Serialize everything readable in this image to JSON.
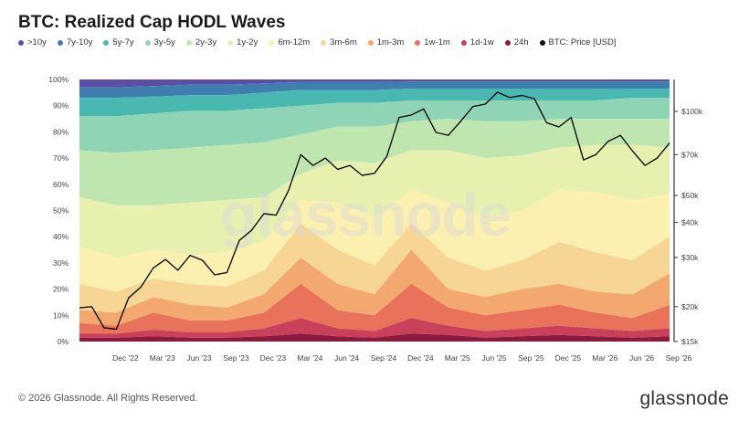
{
  "title": "BTC: Realized Cap HODL Waves",
  "legend": [
    {
      "label": ">10y",
      "color": "#5b4da8"
    },
    {
      "label": "7y-10y",
      "color": "#3f7fb0"
    },
    {
      "label": "5y-7y",
      "color": "#49b8b0"
    },
    {
      "label": "3y-5y",
      "color": "#8fd5b5"
    },
    {
      "label": "2y-3y",
      "color": "#c0e6b0"
    },
    {
      "label": "1y-2y",
      "color": "#e8f0b0"
    },
    {
      "label": "6m-12m",
      "color": "#fbf0b0"
    },
    {
      "label": "3m-6m",
      "color": "#f7d595"
    },
    {
      "label": "1m-3m",
      "color": "#f2a86e"
    },
    {
      "label": "1w-1m",
      "color": "#e8735a"
    },
    {
      "label": "1d-1w",
      "color": "#c9405a"
    },
    {
      "label": "24h",
      "color": "#8b1a3e"
    },
    {
      "label": "BTC: Price [USD]",
      "color": "#111111"
    }
  ],
  "watermark": "glassnode",
  "copyright": "© 2026 Glassnode. All Rights Reserved.",
  "brand": "glassnode",
  "chart_data": {
    "type": "area",
    "title": "BTC: Realized Cap HODL Waves",
    "x_tick_labels": [
      "Dec '22",
      "Mar '23",
      "Jun '23",
      "Sep '23",
      "Dec '23",
      "Mar '24",
      "Jun '24",
      "Sep '24",
      "Dec '24",
      "Mar '25",
      "Jun '25",
      "Sep '25",
      "Dec '25",
      "Mar '26",
      "Jun '26",
      "Sep '26"
    ],
    "y_left_tick_labels": [
      "0%",
      "10%",
      "20%",
      "30%",
      "40%",
      "50%",
      "60%",
      "70%",
      "80%",
      "90%",
      "100%"
    ],
    "y_left_range": [
      0,
      100
    ],
    "y_right_tick_labels": [
      "$15k",
      "$20k",
      "$30k",
      "$40k",
      "$50k",
      "$70k",
      "$100k"
    ],
    "y_right_scale": "log",
    "y_right_range": [
      15000,
      130000
    ],
    "x_range": [
      "2022-09",
      "2026-09"
    ],
    "stack_order_bottom_to_top": [
      "24h",
      "1d-1w",
      "1w-1m",
      "1m-3m",
      "3m-6m",
      "6m-12m",
      "1y-2y",
      "2y-3y",
      "3y-5y",
      "5y-7y",
      "7y-10y",
      ">10y"
    ],
    "x": [
      "2022-09",
      "2022-12",
      "2023-03",
      "2023-06",
      "2023-09",
      "2023-12",
      "2024-03",
      "2024-06",
      "2024-09",
      "2024-12",
      "2025-03",
      "2025-06",
      "2025-09",
      "2025-12",
      "2026-03",
      "2026-06",
      "2026-09"
    ],
    "cumulative_series": [
      {
        "name": "24h",
        "values": [
          1.5,
          1.5,
          2,
          1.5,
          1.5,
          2,
          3,
          2,
          1.5,
          3,
          2.5,
          1.5,
          2,
          2.5,
          2,
          1.5,
          2
        ]
      },
      {
        "name": "1d-1w",
        "values": [
          3,
          3,
          4.5,
          3.5,
          3.5,
          5,
          9,
          5,
          4,
          9,
          6,
          4,
          5,
          6,
          5,
          4,
          5
        ]
      },
      {
        "name": "1w-1m",
        "values": [
          7,
          6,
          11,
          8,
          8,
          11,
          22,
          12,
          10,
          22,
          13,
          10,
          12,
          14,
          11,
          9,
          14
        ]
      },
      {
        "name": "1m-3m",
        "values": [
          12,
          11,
          17,
          14,
          13,
          18,
          32,
          22,
          18,
          35,
          20,
          17,
          20,
          22,
          19,
          18,
          26
        ]
      },
      {
        "name": "3m-6m",
        "values": [
          22,
          19,
          24,
          22,
          21,
          27,
          45,
          35,
          29,
          45,
          32,
          27,
          31,
          38,
          34,
          31,
          40
        ]
      },
      {
        "name": "6m-12m",
        "values": [
          36,
          32,
          35,
          33,
          34,
          38,
          54,
          53,
          47,
          58,
          53,
          47,
          50,
          58,
          57,
          54,
          56
        ]
      },
      {
        "name": "1y-2y",
        "values": [
          55,
          52,
          52,
          53,
          54,
          55,
          64,
          69,
          68,
          73,
          73,
          70,
          71,
          74,
          75,
          75,
          74
        ]
      },
      {
        "name": "2y-3y",
        "values": [
          73,
          72,
          73,
          74,
          75,
          76,
          79,
          82,
          82,
          84,
          85,
          84,
          84,
          85,
          85,
          85,
          85
        ]
      },
      {
        "name": "3y-5y",
        "values": [
          86,
          86,
          87,
          88,
          88,
          89,
          90,
          91,
          91,
          92,
          92,
          92,
          92,
          92,
          92,
          93,
          93
        ]
      },
      {
        "name": "5y-7y",
        "values": [
          93,
          93,
          93.5,
          94,
          94,
          95,
          96,
          96,
          96,
          96.5,
          96.5,
          96.5,
          96.5,
          96.5,
          96.5,
          96.5,
          96.5
        ]
      },
      {
        "name": "7y-10y",
        "values": [
          97,
          97,
          97.5,
          98,
          98,
          98.5,
          99,
          99,
          99,
          99.2,
          99.2,
          99.2,
          99.2,
          99.2,
          99.2,
          99.2,
          99.2
        ]
      },
      {
        "name": ">10y",
        "values": [
          100,
          100,
          100,
          100,
          100,
          100,
          100,
          100,
          100,
          100,
          100,
          100,
          100,
          100,
          100,
          100,
          100
        ]
      }
    ],
    "price_series": {
      "name": "BTC: Price [USD]",
      "x": [
        "2022-09",
        "2022-10",
        "2022-11",
        "2022-12",
        "2023-01",
        "2023-02",
        "2023-03",
        "2023-04",
        "2023-05",
        "2023-06",
        "2023-07",
        "2023-08",
        "2023-09",
        "2023-10",
        "2023-11",
        "2023-12",
        "2024-01",
        "2024-02",
        "2024-03",
        "2024-04",
        "2024-05",
        "2024-06",
        "2024-07",
        "2024-08",
        "2024-09",
        "2024-10",
        "2024-11",
        "2024-12",
        "2025-01",
        "2025-02",
        "2025-03",
        "2025-04",
        "2025-05",
        "2025-06",
        "2025-07",
        "2025-08",
        "2025-09",
        "2025-10",
        "2025-11",
        "2025-12",
        "2026-01",
        "2026-02",
        "2026-03",
        "2026-04",
        "2026-05",
        "2026-06",
        "2026-07",
        "2026-08",
        "2026-09"
      ],
      "values": [
        19800,
        20000,
        16800,
        16600,
        21500,
        23500,
        27500,
        29500,
        27000,
        30500,
        29300,
        26000,
        26500,
        34500,
        37500,
        43000,
        42500,
        52000,
        70000,
        64000,
        68000,
        62000,
        64000,
        59000,
        60000,
        69000,
        95000,
        97000,
        102000,
        84000,
        82000,
        92000,
        104000,
        106000,
        117000,
        112000,
        114000,
        111000,
        91000,
        88000,
        95000,
        67000,
        70000,
        78000,
        82000,
        72000,
        64000,
        68000,
        77000
      ]
    }
  }
}
